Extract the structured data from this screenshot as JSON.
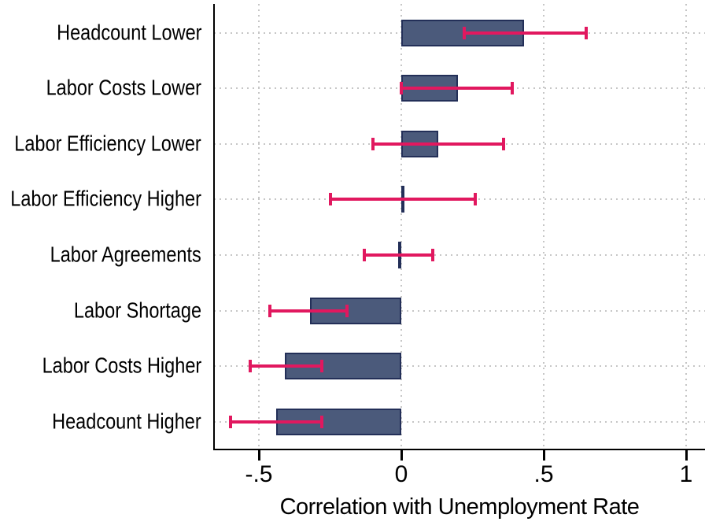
{
  "figure": {
    "background": "#ffffff"
  },
  "chart_data": {
    "type": "bar",
    "orientation": "horizontal",
    "title": "",
    "xlabel": "Correlation with Unemployment Rate",
    "ylabel": "",
    "categories": [
      "Headcount Lower",
      "Labor Costs Lower",
      "Labor Efficiency Lower",
      "Labor Efficiency Higher",
      "Labor Agreements",
      "Labor Shortage",
      "Labor Costs Higher",
      "Headcount Higher"
    ],
    "values": [
      0.43,
      0.2,
      0.13,
      0.005,
      -0.01,
      -0.32,
      -0.41,
      -0.44
    ],
    "ci_low": [
      0.22,
      0.0,
      -0.1,
      -0.25,
      -0.13,
      -0.46,
      -0.53,
      -0.6
    ],
    "ci_high": [
      0.65,
      0.39,
      0.36,
      0.26,
      0.11,
      -0.19,
      -0.28,
      -0.28
    ],
    "x_ticks": [
      {
        "value": -0.5,
        "label": "-.5"
      },
      {
        "value": 0,
        "label": "0"
      },
      {
        "value": 0.5,
        "label": ".5"
      },
      {
        "value": 1,
        "label": "1"
      }
    ],
    "xlim": [
      -0.657,
      1.066
    ],
    "grid": "dotted",
    "legend": "none",
    "colors": {
      "bar_fill": "#4b5a7b",
      "bar_border": "#232f58",
      "error_bar": "#e1185f",
      "grid": "#c6c6c6",
      "axis": "#000000",
      "text": "#000000"
    }
  }
}
